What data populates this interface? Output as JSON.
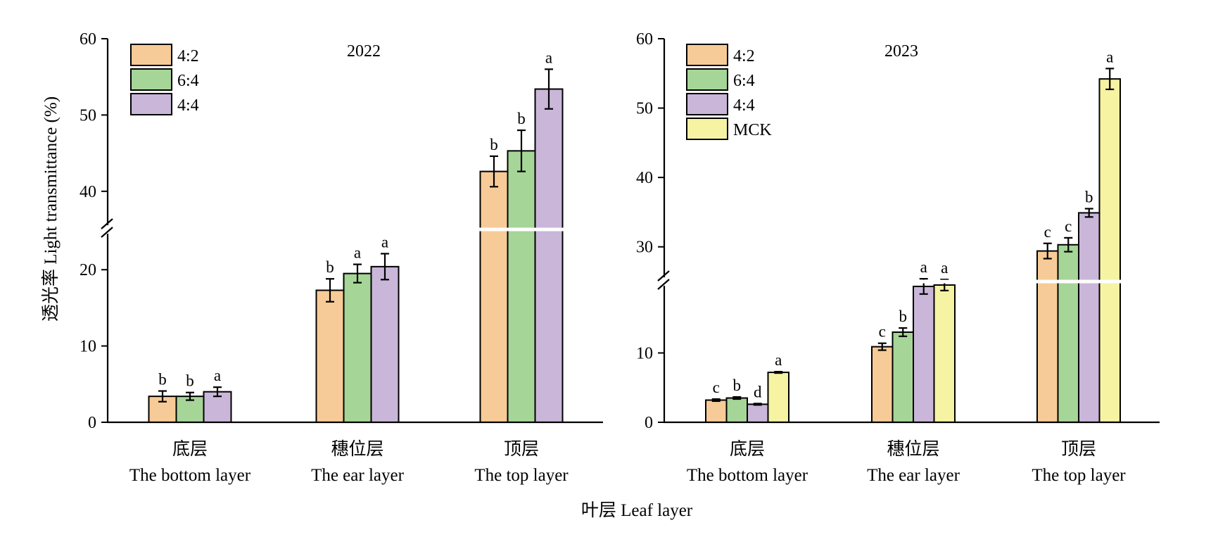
{
  "figure": {
    "ylabel": "透光率 Light transmittance (%)",
    "xlabel": "叶层 Leaf layer"
  },
  "colors": {
    "4:2": "#f7cb97",
    "6:4": "#a6d598",
    "4:4": "#c9b6d9",
    "MCK": "#f6f3a3",
    "axis": "#000000",
    "break": "#ffffff"
  },
  "chart_data": [
    {
      "type": "bar",
      "title": "2022",
      "categories": [
        {
          "zh": "底层",
          "en": "The bottom layer"
        },
        {
          "zh": "穗位层",
          "en": "The ear layer"
        },
        {
          "zh": "顶层",
          "en": "The top layer"
        }
      ],
      "series": [
        {
          "name": "4:2",
          "values": [
            3.4,
            17.3,
            42.6
          ],
          "errors": [
            0.7,
            1.5,
            2.0
          ],
          "letters": [
            "b",
            "b",
            "b"
          ]
        },
        {
          "name": "6:4",
          "values": [
            3.4,
            19.5,
            45.3
          ],
          "errors": [
            0.5,
            1.2,
            2.7
          ],
          "letters": [
            "b",
            "a",
            "b"
          ]
        },
        {
          "name": "4:4",
          "values": [
            4.0,
            20.4,
            53.4
          ],
          "errors": [
            0.6,
            1.7,
            2.6
          ],
          "letters": [
            "a",
            "a",
            "a"
          ]
        }
      ],
      "y_axis": {
        "lower": {
          "range": [
            0,
            25
          ],
          "ticks": [
            0,
            10,
            20
          ]
        },
        "upper": {
          "range": [
            35,
            60
          ],
          "ticks": [
            40,
            50,
            60
          ]
        }
      },
      "legend": {
        "position": "top-left",
        "entries": [
          "4:2",
          "6:4",
          "4:4"
        ]
      }
    },
    {
      "type": "bar",
      "title": "2023",
      "categories": [
        {
          "zh": "底层",
          "en": "The bottom layer"
        },
        {
          "zh": "穗位层",
          "en": "The ear layer"
        },
        {
          "zh": "顶层",
          "en": "The top layer"
        }
      ],
      "series": [
        {
          "name": "4:2",
          "values": [
            3.2,
            10.9,
            29.4
          ],
          "errors": [
            0.15,
            0.5,
            1.1
          ],
          "letters": [
            "c",
            "c",
            "c"
          ]
        },
        {
          "name": "6:4",
          "values": [
            3.5,
            13.0,
            30.3
          ],
          "errors": [
            0.15,
            0.6,
            1.0
          ],
          "letters": [
            "b",
            "b",
            "c"
          ]
        },
        {
          "name": "4:4",
          "values": [
            2.6,
            19.6,
            34.9
          ],
          "errors": [
            0.1,
            1.1,
            0.6
          ],
          "letters": [
            "d",
            "a",
            "b"
          ]
        },
        {
          "name": "MCK",
          "values": [
            7.2,
            19.8,
            54.2
          ],
          "errors": [
            0.1,
            0.8,
            1.5
          ],
          "letters": [
            "a",
            "a",
            "a"
          ]
        }
      ],
      "y_axis": {
        "lower": {
          "range": [
            0,
            20
          ],
          "ticks": [
            0,
            10
          ]
        },
        "upper": {
          "range": [
            25,
            60
          ],
          "ticks": [
            30,
            40,
            50,
            60
          ]
        }
      },
      "legend": {
        "position": "top-left",
        "entries": [
          "4:2",
          "6:4",
          "4:4",
          "MCK"
        ]
      }
    }
  ]
}
